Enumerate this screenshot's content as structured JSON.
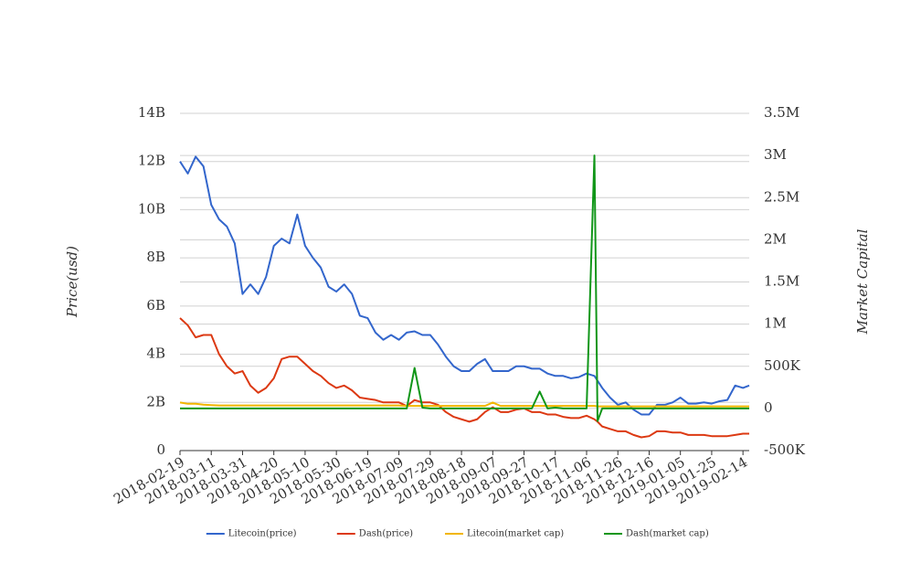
{
  "chart_data": {
    "type": "line",
    "x": [
      "2018-02-19",
      "2018-02-24",
      "2018-03-01",
      "2018-03-06",
      "2018-03-11",
      "2018-03-16",
      "2018-03-21",
      "2018-03-26",
      "2018-03-31",
      "2018-04-05",
      "2018-04-10",
      "2018-04-15",
      "2018-04-20",
      "2018-04-25",
      "2018-04-30",
      "2018-05-05",
      "2018-05-10",
      "2018-05-15",
      "2018-05-20",
      "2018-05-25",
      "2018-05-30",
      "2018-06-04",
      "2018-06-09",
      "2018-06-14",
      "2018-06-19",
      "2018-06-24",
      "2018-06-29",
      "2018-07-04",
      "2018-07-09",
      "2018-07-14",
      "2018-07-19",
      "2018-07-24",
      "2018-07-29",
      "2018-08-03",
      "2018-08-08",
      "2018-08-13",
      "2018-08-18",
      "2018-08-23",
      "2018-08-28",
      "2018-09-02",
      "2018-09-07",
      "2018-09-12",
      "2018-09-17",
      "2018-09-22",
      "2018-09-27",
      "2018-10-02",
      "2018-10-07",
      "2018-10-12",
      "2018-10-17",
      "2018-10-22",
      "2018-10-27",
      "2018-11-01",
      "2018-11-06",
      "2018-11-11",
      "2018-11-13",
      "2018-11-16",
      "2018-11-21",
      "2018-11-26",
      "2018-12-01",
      "2018-12-06",
      "2018-12-11",
      "2018-12-16",
      "2018-12-21",
      "2018-12-26",
      "2018-12-31",
      "2019-01-05",
      "2019-01-10",
      "2019-01-15",
      "2019-01-20",
      "2019-01-25",
      "2019-01-30",
      "2019-02-04",
      "2019-02-09",
      "2019-02-14",
      "2019-02-18"
    ],
    "series": [
      {
        "name": "Litecoin(price)",
        "color": "#3366cc",
        "axis": "y",
        "values": [
          12000000000.0,
          11500000000.0,
          12200000000.0,
          11800000000.0,
          10200000000.0,
          9600000000.0,
          9300000000.0,
          8600000000.0,
          6500000000.0,
          6900000000.0,
          6500000000.0,
          7200000000.0,
          8500000000.0,
          8800000000.0,
          8600000000.0,
          9800000000.0,
          8500000000.0,
          8000000000.0,
          7600000000.0,
          6800000000.0,
          6600000000.0,
          6900000000.0,
          6500000000.0,
          5600000000.0,
          5500000000.0,
          4900000000.0,
          4600000000.0,
          4800000000.0,
          4600000000.0,
          4900000000.0,
          4950000000.0,
          4800000000.0,
          4800000000.0,
          4400000000.0,
          3900000000.0,
          3500000000.0,
          3300000000.0,
          3300000000.0,
          3600000000.0,
          3800000000.0,
          3300000000.0,
          3300000000.0,
          3300000000.0,
          3500000000.0,
          3500000000.0,
          3400000000.0,
          3400000000.0,
          3200000000.0,
          3100000000.0,
          3100000000.0,
          3000000000.0,
          3050000000.0,
          3200000000.0,
          3100000000.0,
          2900000000.0,
          2600000000.0,
          2200000000.0,
          1900000000.0,
          2000000000.0,
          1700000000.0,
          1500000000.0,
          1500000000.0,
          1900000000.0,
          1900000000.0,
          2000000000.0,
          2200000000.0,
          1950000000.0,
          1950000000.0,
          2000000000.0,
          1950000000.0,
          2050000000.0,
          2100000000.0,
          2700000000.0,
          2600000000.0,
          2700000000.0
        ]
      },
      {
        "name": "Dash(price)",
        "color": "#dc3912",
        "axis": "y",
        "values": [
          5500000000.0,
          5200000000.0,
          4700000000.0,
          4800000000.0,
          4800000000.0,
          4000000000.0,
          3500000000.0,
          3200000000.0,
          3300000000.0,
          2700000000.0,
          2400000000.0,
          2600000000.0,
          3000000000.0,
          3800000000.0,
          3900000000.0,
          3900000000.0,
          3600000000.0,
          3300000000.0,
          3100000000.0,
          2800000000.0,
          2600000000.0,
          2700000000.0,
          2500000000.0,
          2200000000.0,
          2150000000.0,
          2100000000.0,
          2000000000.0,
          2000000000.0,
          2000000000.0,
          1850000000.0,
          2100000000.0,
          2000000000.0,
          2000000000.0,
          1900000000.0,
          1600000000.0,
          1400000000.0,
          1300000000.0,
          1200000000.0,
          1300000000.0,
          1600000000.0,
          1800000000.0,
          1600000000.0,
          1600000000.0,
          1700000000.0,
          1750000000.0,
          1600000000.0,
          1600000000.0,
          1500000000.0,
          1500000000.0,
          1400000000.0,
          1350000000.0,
          1350000000.0,
          1450000000.0,
          1300000000.0,
          1200000000.0,
          1000000000.0,
          900000000.0,
          800000000.0,
          800000000.0,
          650000000.0,
          550000000.0,
          600000000.0,
          800000000.0,
          800000000.0,
          750000000.0,
          750000000.0,
          650000000.0,
          650000000.0,
          650000000.0,
          600000000.0,
          600000000.0,
          600000000.0,
          650000000.0,
          700000000.0,
          700000000.0
        ]
      },
      {
        "name": "Litecoin(market cap)",
        "color": "#f2b600",
        "axis": "y2",
        "values": [
          70000,
          55000,
          55000,
          45000,
          40000,
          35000,
          35000,
          35000,
          35000,
          35000,
          35000,
          35000,
          35000,
          35000,
          35000,
          35000,
          35000,
          35000,
          35000,
          35000,
          35000,
          35000,
          35000,
          35000,
          35000,
          35000,
          35000,
          35000,
          35000,
          30000,
          30000,
          30000,
          30000,
          30000,
          30000,
          30000,
          30000,
          30000,
          30000,
          30000,
          70000,
          30000,
          30000,
          30000,
          30000,
          30000,
          30000,
          30000,
          30000,
          30000,
          30000,
          30000,
          30000,
          30000,
          25000,
          25000,
          25000,
          25000,
          25000,
          25000,
          25000,
          25000,
          25000,
          25000,
          25000,
          25000,
          25000,
          25000,
          25000,
          25000,
          25000,
          25000,
          25000,
          25000,
          25000
        ]
      },
      {
        "name": "Dash(market cap)",
        "color": "#109618",
        "axis": "y2",
        "values": [
          0,
          0,
          0,
          0,
          0,
          0,
          0,
          0,
          0,
          0,
          0,
          0,
          0,
          0,
          0,
          0,
          0,
          0,
          0,
          0,
          0,
          0,
          0,
          0,
          0,
          0,
          0,
          0,
          0,
          0,
          480000,
          10000,
          0,
          0,
          0,
          0,
          0,
          0,
          0,
          0,
          0,
          0,
          0,
          0,
          0,
          0,
          200000,
          0,
          10000,
          0,
          0,
          0,
          0,
          3000000,
          -150000,
          0,
          0,
          0,
          0,
          0,
          0,
          0,
          0,
          0,
          0,
          0,
          0,
          0,
          0,
          0,
          0,
          0,
          0,
          0,
          0
        ]
      }
    ],
    "xticks": [
      "2018-02-19",
      "2018-03-11",
      "2018-03-31",
      "2018-04-20",
      "2018-05-10",
      "2018-05-30",
      "2018-06-19",
      "2018-07-09",
      "2018-07-29",
      "2018-08-18",
      "2018-09-07",
      "2018-09-27",
      "2018-10-17",
      "2018-11-06",
      "2018-11-26",
      "2018-12-16",
      "2019-01-05",
      "2019-01-25",
      "2019-02-14"
    ],
    "ylabel": "Price(usd)",
    "y2label": "Market Capital",
    "ylim": [
      0,
      14000000000.0
    ],
    "yticks": [
      0,
      {
        "value": 2000000000.0,
        "label": "2B"
      },
      {
        "value": 4000000000.0,
        "label": "4B"
      },
      {
        "value": 6000000000.0,
        "label": "6B"
      },
      {
        "value": 8000000000.0,
        "label": "8B"
      },
      {
        "value": 10000000000.0,
        "label": "10B"
      },
      {
        "value": 12000000000.0,
        "label": "12B"
      },
      {
        "value": 14000000000.0,
        "label": "14B"
      }
    ],
    "y2lim": [
      -500000,
      3500000
    ],
    "y2ticks": [
      {
        "value": -500000,
        "label": "-500K"
      },
      0,
      {
        "value": 500000,
        "label": "500K"
      },
      {
        "value": 1000000,
        "label": "1M"
      },
      {
        "value": 1500000,
        "label": "1.5M"
      },
      {
        "value": 2000000,
        "label": "2M"
      },
      {
        "value": 2500000,
        "label": "2.5M"
      },
      {
        "value": 3000000,
        "label": "3M"
      },
      {
        "value": 3500000,
        "label": "3.5M"
      }
    ],
    "grid": true,
    "legend": "bottom"
  }
}
